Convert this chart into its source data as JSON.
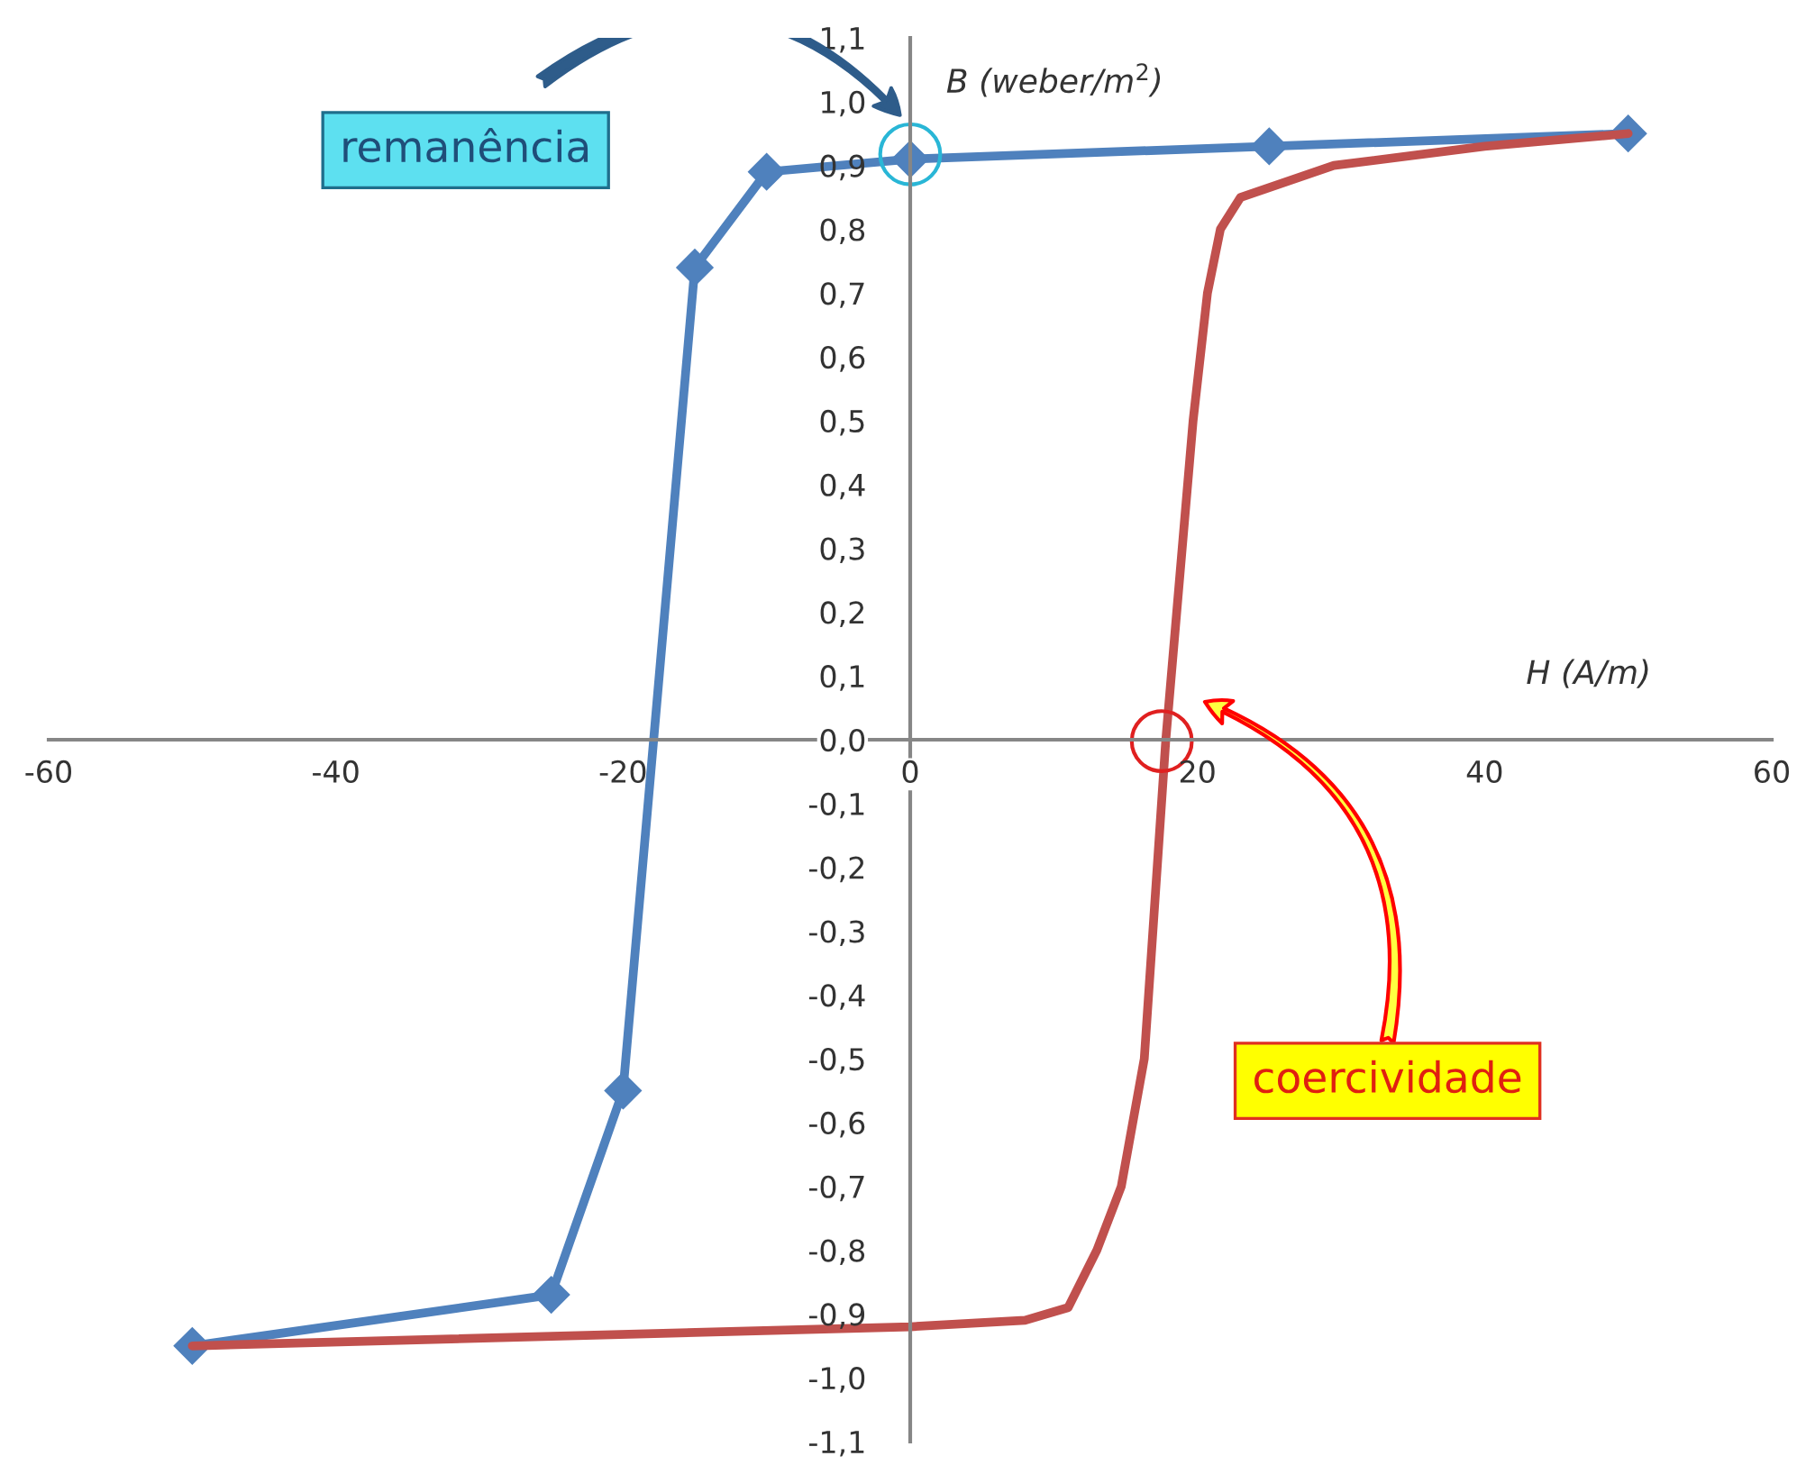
{
  "chart_data": {
    "type": "line",
    "xlabel": "H (A/m)",
    "ylabel": "B (weber/m$^{2}$)",
    "xlim": [
      -60,
      60
    ],
    "ylim": [
      -1.1,
      1.1
    ],
    "xticks": [
      -60,
      -40,
      -20,
      0,
      20,
      40,
      60
    ],
    "yticks": [
      {
        "value": -1.1,
        "label": "-1,1"
      },
      {
        "value": -1.0,
        "label": "-1,0"
      },
      {
        "value": -0.9,
        "label": "-0,9"
      },
      {
        "value": -0.8,
        "label": "-0,8"
      },
      {
        "value": -0.7,
        "label": "-0,7"
      },
      {
        "value": -0.6,
        "label": "-0,6"
      },
      {
        "value": -0.5,
        "label": "-0,5"
      },
      {
        "value": -0.4,
        "label": "-0,4"
      },
      {
        "value": -0.3,
        "label": "-0,3"
      },
      {
        "value": -0.2,
        "label": "-0,2"
      },
      {
        "value": -0.1,
        "label": "-0,1"
      },
      {
        "value": 0.0,
        "label": "0,0"
      },
      {
        "value": 0.1,
        "label": "0,1"
      },
      {
        "value": 0.2,
        "label": "0,2"
      },
      {
        "value": 0.3,
        "label": "0,3"
      },
      {
        "value": 0.4,
        "label": "0,4"
      },
      {
        "value": 0.5,
        "label": "0,5"
      },
      {
        "value": 0.6,
        "label": "0,6"
      },
      {
        "value": 0.7,
        "label": "0,7"
      },
      {
        "value": 0.8,
        "label": "0,8"
      },
      {
        "value": 0.9,
        "label": "0,9"
      },
      {
        "value": 1.0,
        "label": "1,0"
      },
      {
        "value": 1.1,
        "label": "1,1"
      }
    ],
    "grid": false,
    "legend": false,
    "line_style": "solid",
    "series": [
      {
        "color": "#4f81bd",
        "marker": "diamond",
        "x": [
          -50,
          -25,
          -20,
          -15,
          -10,
          0,
          25,
          50
        ],
        "values": [
          -0.95,
          -0.87,
          -0.55,
          0.74,
          0.89,
          0.91,
          0.93,
          0.95
        ]
      },
      {
        "color": "#c0504d",
        "marker": "none",
        "x": [
          -50,
          0,
          8,
          11,
          13,
          14.7,
          16.3,
          17.8,
          19.7,
          20.7,
          21.6,
          23,
          29.5,
          40,
          50
        ],
        "values": [
          -0.95,
          -0.92,
          -0.91,
          -0.89,
          -0.8,
          -0.7,
          -0.5,
          0.0,
          0.5,
          0.7,
          0.8,
          0.85,
          0.9,
          0.93,
          0.95
        ]
      }
    ],
    "annotations": [
      "remanência",
      "coercividade"
    ]
  }
}
